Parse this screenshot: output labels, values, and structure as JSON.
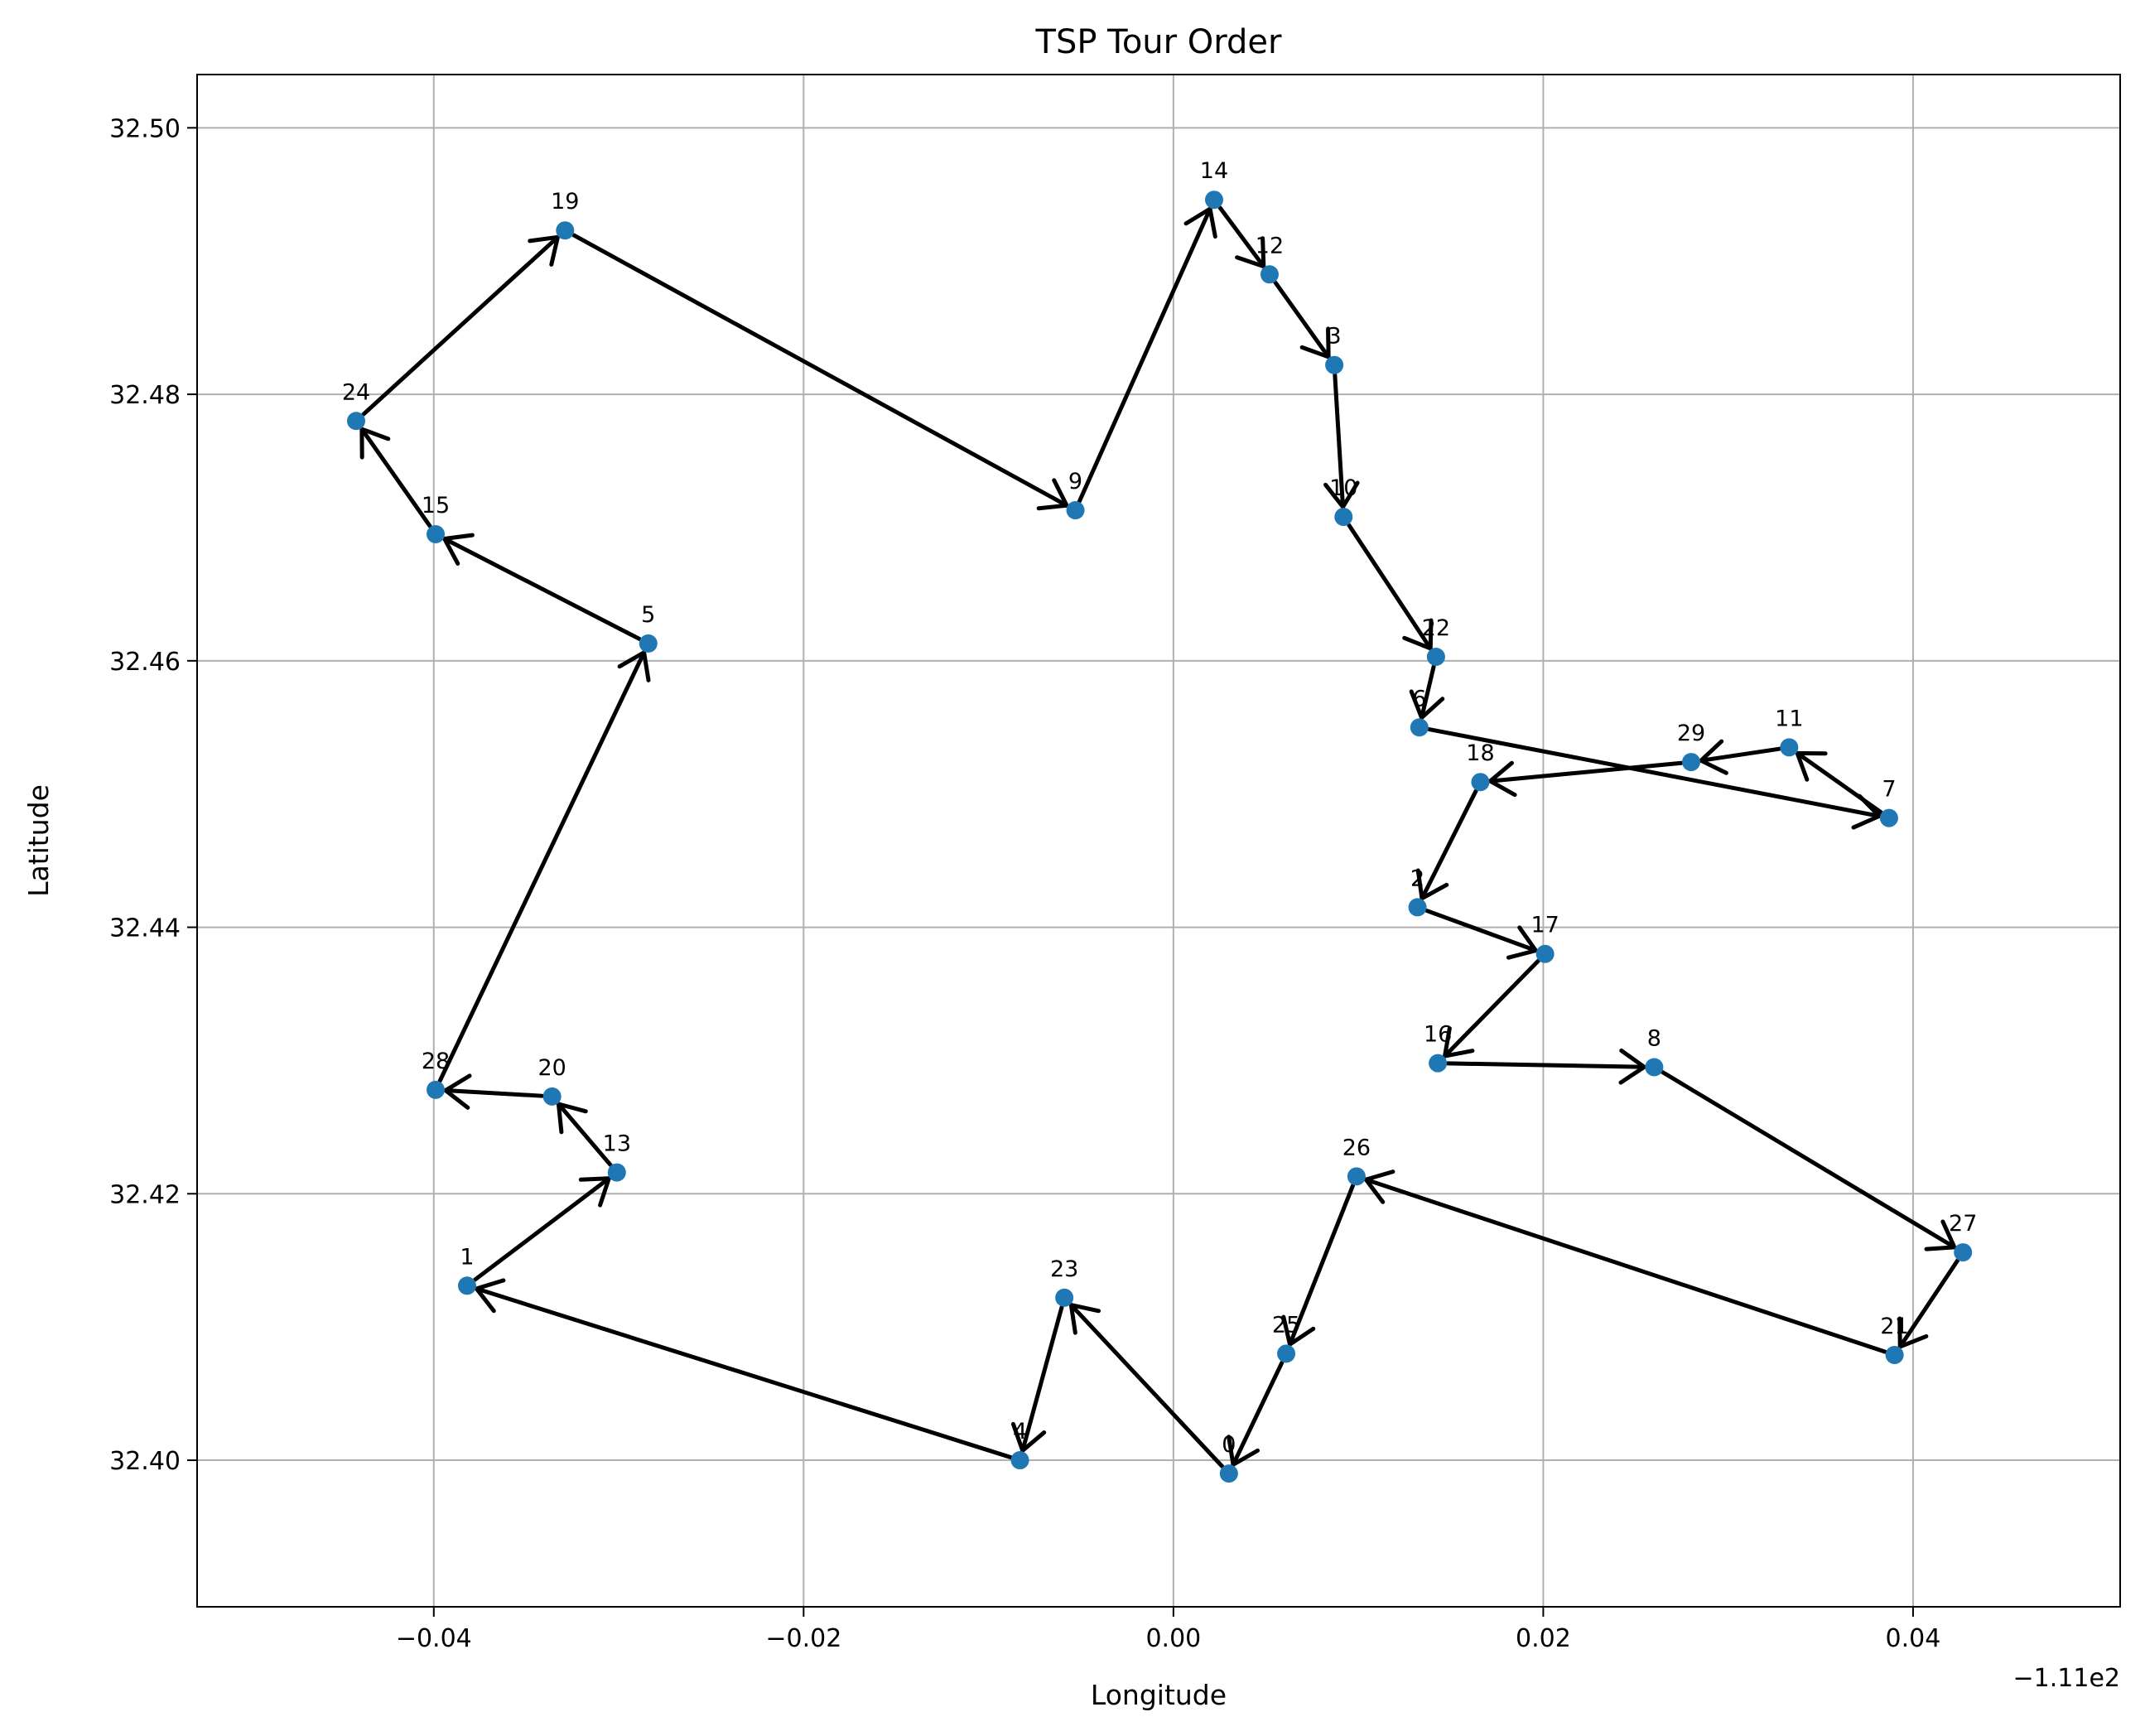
{
  "chart_data": {
    "type": "line",
    "title": "TSP Tour Order",
    "xlabel": "Longitude",
    "ylabel": "Latitude",
    "x_offset_label": "−1.11e2",
    "xlim": [
      -0.0528,
      0.0512
    ],
    "ylim": [
      32.389,
      32.504
    ],
    "grid": true,
    "marker_color": "#1f77b4",
    "arrow_color": "#000000",
    "xticks": [
      -0.04,
      -0.02,
      0.0,
      0.02,
      0.04
    ],
    "xtick_labels": [
      "−0.04",
      "−0.02",
      "0.00",
      "0.02",
      "0.04"
    ],
    "yticks": [
      32.4,
      32.42,
      32.44,
      32.46,
      32.48,
      32.5
    ],
    "ytick_labels": [
      "32.40",
      "32.42",
      "32.44",
      "32.46",
      "32.48",
      "32.50"
    ],
    "points": [
      {
        "label": "0",
        "x": 0.003,
        "y": 32.399
      },
      {
        "label": "1",
        "x": -0.0382,
        "y": 32.4131
      },
      {
        "label": "2",
        "x": 0.0132,
        "y": 32.4415
      },
      {
        "label": "3",
        "x": 0.0087,
        "y": 32.4822
      },
      {
        "label": "4",
        "x": -0.0083,
        "y": 32.4
      },
      {
        "label": "5",
        "x": -0.0284,
        "y": 32.4613
      },
      {
        "label": "6",
        "x": 0.0133,
        "y": 32.455
      },
      {
        "label": "7",
        "x": 0.0387,
        "y": 32.4482
      },
      {
        "label": "8",
        "x": 0.026,
        "y": 32.4295
      },
      {
        "label": "9",
        "x": -0.0053,
        "y": 32.4713
      },
      {
        "label": "10",
        "x": 0.0092,
        "y": 32.4708
      },
      {
        "label": "11",
        "x": 0.0333,
        "y": 32.4535
      },
      {
        "label": "12",
        "x": 0.0052,
        "y": 32.489
      },
      {
        "label": "13",
        "x": -0.0301,
        "y": 32.4216
      },
      {
        "label": "14",
        "x": 0.0022,
        "y": 32.4946
      },
      {
        "label": "15",
        "x": -0.0399,
        "y": 32.4695
      },
      {
        "label": "16",
        "x": 0.0143,
        "y": 32.4298
      },
      {
        "label": "17",
        "x": 0.0201,
        "y": 32.438
      },
      {
        "label": "18",
        "x": 0.0166,
        "y": 32.4509
      },
      {
        "label": "19",
        "x": -0.0329,
        "y": 32.4923
      },
      {
        "label": "20",
        "x": -0.0336,
        "y": 32.4273
      },
      {
        "label": "21",
        "x": 0.039,
        "y": 32.4079
      },
      {
        "label": "22",
        "x": 0.0142,
        "y": 32.4603
      },
      {
        "label": "23",
        "x": -0.0059,
        "y": 32.4122
      },
      {
        "label": "24",
        "x": -0.0442,
        "y": 32.478
      },
      {
        "label": "25",
        "x": 0.0061,
        "y": 32.408
      },
      {
        "label": "26",
        "x": 0.0099,
        "y": 32.4213
      },
      {
        "label": "27",
        "x": 0.0427,
        "y": 32.4156
      },
      {
        "label": "28",
        "x": -0.0399,
        "y": 32.4278
      },
      {
        "label": "29",
        "x": 0.028,
        "y": 32.4524
      }
    ],
    "tour": [
      0,
      23,
      4,
      1,
      13,
      20,
      28,
      5,
      15,
      24,
      19,
      9,
      14,
      12,
      3,
      10,
      22,
      6,
      7,
      11,
      29,
      18,
      2,
      17,
      16,
      8,
      27,
      21,
      26,
      25,
      0
    ]
  }
}
